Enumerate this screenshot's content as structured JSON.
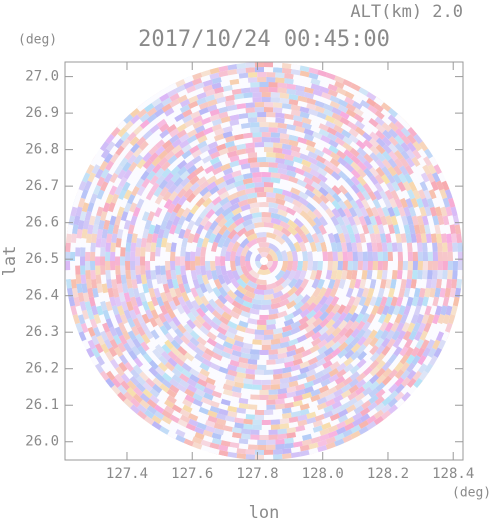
{
  "chart_data": {
    "type": "radar-ppi",
    "title": "2017/10/24 00:45:00",
    "annotation": "ALT(km) 2.0",
    "xlabel": "lon",
    "ylabel": "lat",
    "xunit": "(deg)",
    "yunit": "(deg)",
    "xlim": [
      127.21,
      128.43
    ],
    "ylim": [
      25.95,
      27.04
    ],
    "xticks": [
      127.4,
      127.6,
      127.8,
      {
        "value": 128,
        "label": "128.0"
      },
      128.2,
      128.4
    ],
    "yticks": [
      {
        "value": 26,
        "label": "26.0"
      },
      26.1,
      26.2,
      26.3,
      26.4,
      26.5,
      26.6,
      26.7,
      26.8,
      26.9,
      {
        "value": 27,
        "label": "27.0"
      }
    ]
  }
}
